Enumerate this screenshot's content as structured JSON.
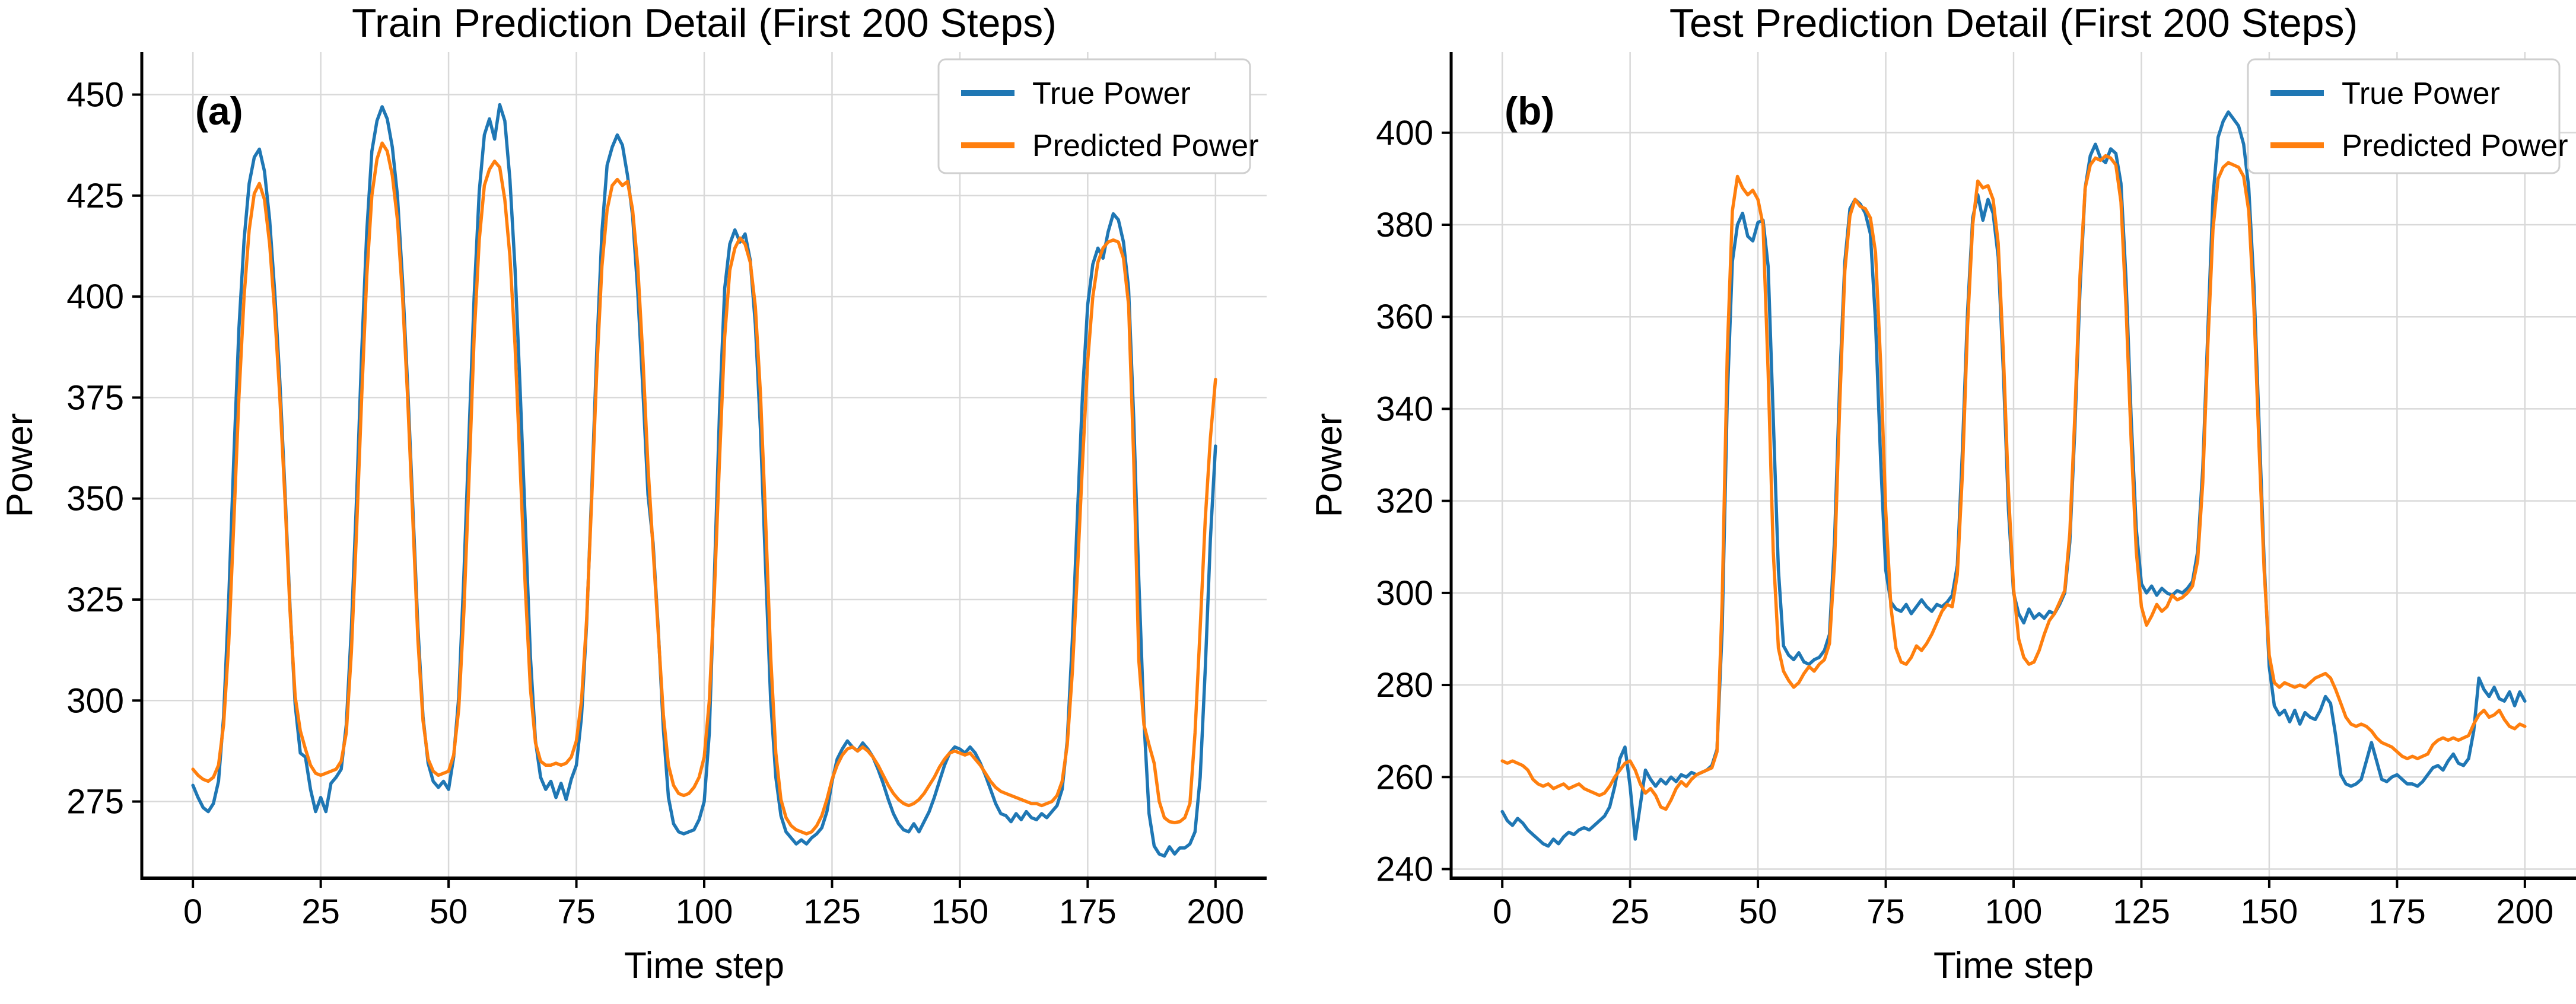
{
  "figure": {
    "background": "#ffffff",
    "grid_color": "#d9d9d9",
    "spine_color": "#000000",
    "legend_border_color": "#cfcfcf",
    "legend_fill": "#ffffff"
  },
  "chart_data": [
    {
      "type": "line",
      "panel_label": "(a)",
      "title": "Train Prediction Detail (First 200 Steps)",
      "xlabel": "Time step",
      "ylabel": "Power",
      "xlim": [
        -10,
        210
      ],
      "ylim": [
        256,
        460.5
      ],
      "xticks": [
        0,
        25,
        50,
        75,
        100,
        125,
        150,
        175,
        200
      ],
      "yticks": [
        275,
        300,
        325,
        350,
        375,
        400,
        425,
        450
      ],
      "grid": true,
      "legend_position": "upper right",
      "x_start": 0,
      "x_step": 1,
      "series": [
        {
          "name": "True Power",
          "color": "#1f77b4",
          "values": [
            279,
            276,
            273.5,
            272.5,
            274.5,
            280,
            296,
            325,
            360,
            392,
            414,
            428,
            434.5,
            436.5,
            431,
            419,
            401,
            379,
            352,
            323,
            299,
            287,
            286,
            278,
            272.5,
            276,
            272.5,
            279.5,
            281,
            283,
            294,
            318,
            350,
            386,
            416,
            436,
            443.5,
            447,
            444,
            437,
            425,
            404,
            378,
            348,
            318,
            296,
            284.5,
            280,
            278.5,
            280,
            278,
            286,
            301,
            331,
            366,
            400,
            426,
            440,
            444,
            439,
            447.5,
            443.5,
            429,
            407,
            377,
            344,
            311,
            290,
            281,
            278,
            280,
            276,
            279.5,
            275.5,
            280.5,
            284,
            296,
            319,
            352,
            387,
            416,
            432.5,
            437,
            440,
            437.5,
            430,
            420,
            401,
            377,
            351,
            339,
            318,
            293,
            276,
            269.5,
            267.5,
            267,
            267.5,
            268,
            270.5,
            275,
            292,
            331,
            372,
            402,
            413,
            416.5,
            413.5,
            415.5,
            409,
            393,
            367,
            333,
            300,
            281,
            271.5,
            267.5,
            266,
            264.5,
            265.5,
            264.5,
            266,
            267,
            268.5,
            272.5,
            280,
            285.5,
            288,
            290,
            288.5,
            287.5,
            289.5,
            288,
            286,
            283,
            279.5,
            275.5,
            272,
            269.5,
            268,
            267.5,
            269.5,
            267.5,
            270,
            272.5,
            276,
            280,
            284,
            287,
            288.5,
            288,
            287,
            288.5,
            287,
            284.5,
            281.5,
            278,
            274.5,
            272,
            271.5,
            270,
            272,
            270.5,
            272.5,
            271,
            270.5,
            272,
            271,
            272.5,
            274,
            278,
            290,
            315,
            346,
            376,
            398,
            408,
            412,
            409.5,
            416,
            420.5,
            419,
            413.5,
            402,
            370,
            330,
            295,
            272,
            264,
            262,
            261.5,
            263.8,
            262,
            263.5,
            263.5,
            264.5,
            267.5,
            281,
            308,
            340,
            363
          ]
        },
        {
          "name": "Predicted Power",
          "color": "#ff7f0e",
          "values": [
            283,
            281.5,
            280.5,
            280,
            281,
            284,
            294,
            314,
            344,
            375,
            400,
            416.5,
            425.5,
            428,
            424,
            413,
            396,
            375,
            350,
            322,
            301,
            292.5,
            288,
            284,
            282,
            281.5,
            282,
            282.5,
            283,
            285,
            292,
            312,
            342,
            375,
            405,
            425,
            434,
            438,
            436,
            430,
            419,
            400,
            375,
            345,
            315,
            295,
            285.5,
            282.5,
            281.5,
            282,
            282.5,
            286.5,
            298,
            322,
            355,
            390,
            414,
            427.5,
            431.5,
            433.5,
            432,
            424,
            410,
            388,
            358,
            328,
            303,
            289.5,
            285,
            284,
            284,
            284.5,
            284,
            284.5,
            286,
            290,
            300,
            320,
            350,
            382,
            407.5,
            421.5,
            427.5,
            429,
            427.5,
            428.5,
            421.5,
            407.5,
            385,
            358,
            337.5,
            317,
            296.5,
            284,
            279,
            277,
            276.5,
            277,
            278.5,
            281,
            286,
            300,
            327,
            360,
            390,
            406.5,
            412,
            414.5,
            413,
            408.5,
            397.5,
            376,
            345,
            311,
            287,
            275.5,
            271,
            269,
            268,
            267.5,
            267,
            267.5,
            269,
            271.5,
            275.5,
            280.5,
            284,
            286.5,
            288,
            288.5,
            287.5,
            288.5,
            287.5,
            286,
            284,
            281.5,
            279,
            277,
            275.5,
            274.5,
            274,
            274.5,
            275.5,
            277,
            279,
            281,
            283.5,
            285.5,
            287,
            287.5,
            287,
            286.5,
            287,
            285.5,
            284,
            282,
            280,
            278.5,
            277.5,
            277,
            276.5,
            276,
            275.5,
            275,
            274.5,
            274.5,
            274,
            274.5,
            275,
            276.5,
            280,
            289,
            307,
            332,
            359,
            384,
            400,
            408.5,
            412,
            413.5,
            414,
            413.5,
            409.5,
            398,
            360,
            310,
            294,
            289,
            284.5,
            275,
            271,
            270,
            269.8,
            270,
            271,
            274.5,
            292,
            318,
            345,
            365,
            379.5
          ]
        }
      ]
    },
    {
      "type": "line",
      "panel_label": "(b)",
      "title": "Test Prediction Detail (First 200 Steps)",
      "xlabel": "Time step",
      "ylabel": "Power",
      "xlim": [
        -10,
        210
      ],
      "ylim": [
        238,
        417.5
      ],
      "xticks": [
        0,
        25,
        50,
        75,
        100,
        125,
        150,
        175,
        200
      ],
      "yticks": [
        240,
        260,
        280,
        300,
        320,
        340,
        360,
        380,
        400
      ],
      "grid": true,
      "legend_position": "upper right",
      "x_start": 0,
      "x_step": 1,
      "series": [
        {
          "name": "True Power",
          "color": "#1f77b4",
          "values": [
            252.5,
            250.5,
            249.5,
            251,
            250,
            248.5,
            247.5,
            246.5,
            245.5,
            245,
            246.5,
            245.5,
            247,
            248,
            247.5,
            248.5,
            249,
            248.5,
            249.5,
            250.5,
            251.5,
            253.5,
            258,
            264,
            266.5,
            258,
            246.5,
            254,
            261.5,
            259.5,
            258,
            259.5,
            258.5,
            260,
            259,
            260.5,
            260,
            261,
            260.5,
            261,
            261.5,
            262.5,
            266,
            292,
            342,
            372,
            380,
            382.5,
            377.5,
            376.5,
            380.5,
            381,
            371,
            338,
            305,
            288.5,
            286.5,
            285.5,
            287,
            285,
            284.5,
            285.5,
            286,
            287.5,
            291,
            312,
            346,
            372,
            383.5,
            385.5,
            384.5,
            382.5,
            378,
            359,
            329,
            305,
            298,
            296.5,
            296,
            297.5,
            295.5,
            297,
            298.5,
            297,
            296,
            297.5,
            297,
            298,
            299.5,
            306,
            331,
            361,
            381.5,
            386.5,
            381,
            385.5,
            382.5,
            373,
            348,
            318,
            300,
            295.5,
            293.5,
            296.5,
            294.5,
            295.5,
            294.5,
            296,
            295.5,
            297.5,
            300,
            311,
            336,
            366,
            388,
            395,
            397.5,
            394.5,
            393.5,
            396.5,
            395.5,
            389,
            368,
            338,
            314,
            302,
            300,
            301.5,
            299.5,
            301,
            300,
            299.5,
            300.5,
            300,
            301,
            302.5,
            309,
            327,
            357,
            386,
            399,
            402.5,
            404.5,
            403,
            401.5,
            397.5,
            388,
            367,
            337,
            307,
            284,
            275.5,
            273.5,
            274.5,
            272,
            274.5,
            271.5,
            274,
            273,
            272.5,
            274.5,
            277.5,
            276,
            269,
            260.5,
            258.5,
            258,
            258.5,
            259.5,
            263.5,
            267.5,
            263.5,
            259.5,
            259,
            260,
            260.5,
            259.5,
            258.5,
            258.5,
            258,
            259,
            260.5,
            262,
            262.5,
            261.5,
            263.5,
            265,
            263,
            262.5,
            264,
            270,
            281.5,
            279,
            277.5,
            279.5,
            277,
            276.5,
            278.5,
            275.5,
            278.5,
            276.5
          ]
        },
        {
          "name": "Predicted Power",
          "color": "#ff7f0e",
          "values": [
            263.5,
            263,
            263.5,
            263,
            262.5,
            261.5,
            259.5,
            258.5,
            258,
            258.5,
            257.5,
            258,
            258.5,
            257.5,
            258,
            258.5,
            257.5,
            257,
            256.5,
            256,
            256.5,
            258,
            260,
            261.5,
            263,
            263.5,
            261.5,
            258.5,
            256.5,
            257.5,
            256,
            253.5,
            253,
            255,
            257.5,
            259,
            258,
            259.5,
            260.5,
            261,
            261.5,
            262,
            265.5,
            298,
            352,
            383,
            390.5,
            388,
            386.5,
            387.5,
            385.5,
            380,
            348,
            309,
            288,
            283,
            281,
            279.5,
            280.5,
            282.5,
            284,
            283,
            284.5,
            285.5,
            289,
            307,
            341,
            370,
            382,
            385.5,
            384,
            383.5,
            381.5,
            374,
            350,
            318,
            297,
            288,
            285,
            284.5,
            286,
            288.5,
            287.5,
            289,
            291,
            293.5,
            296,
            297.5,
            297,
            304,
            326,
            358,
            380,
            389.5,
            388,
            388.5,
            385.5,
            376,
            352,
            322,
            301,
            290,
            286,
            284.5,
            285,
            287.5,
            291,
            294,
            295.5,
            298,
            300.5,
            313,
            339,
            369,
            388,
            393,
            394.5,
            394,
            395,
            394.5,
            393,
            385,
            362,
            333,
            309,
            297,
            293,
            295,
            297.5,
            296,
            297,
            299.5,
            298.5,
            299,
            300,
            301.5,
            307,
            324,
            354,
            379,
            390,
            392.5,
            393.5,
            393,
            392.5,
            390.5,
            383,
            362,
            332,
            305,
            286.5,
            280.5,
            279.5,
            280.5,
            280,
            279.5,
            280,
            279.5,
            280.5,
            281.5,
            282,
            282.5,
            281.5,
            279,
            276,
            273,
            271.5,
            271,
            271.5,
            271,
            270,
            268.5,
            267.5,
            267,
            266.5,
            265.5,
            264.5,
            264,
            264.5,
            264,
            264.5,
            265,
            267,
            268,
            268.5,
            268,
            268.5,
            268,
            268.5,
            269,
            271.5,
            273.5,
            274.5,
            273,
            273.5,
            274.5,
            272.5,
            271,
            270.5,
            271.5,
            271
          ]
        }
      ]
    }
  ]
}
